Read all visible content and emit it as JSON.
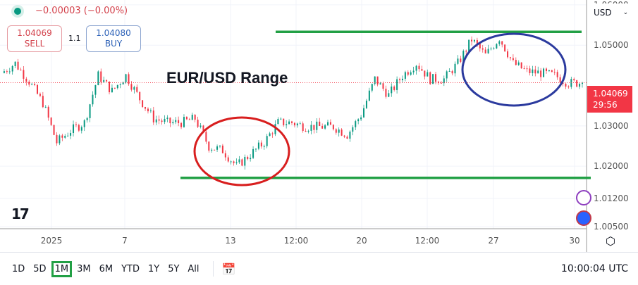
{
  "header": {
    "change": "−0.00003 (−0.00%)",
    "status_color": "#089981"
  },
  "trade": {
    "sell_price": "1.04069",
    "sell_label": "SELL",
    "spread": "1.1",
    "buy_price": "1.04080",
    "buy_label": "BUY"
  },
  "currency": "USD",
  "annotation_title": "EUR/USD Range",
  "price_tag": {
    "price": "1.04069",
    "countdown": "29:56"
  },
  "bottom": {
    "ranges": [
      "1D",
      "5D",
      "1M",
      "3M",
      "6M",
      "YTD",
      "1Y",
      "5Y",
      "All"
    ],
    "selected": "1M",
    "clock": "10:00:04 UTC"
  },
  "chart_data": {
    "type": "candlestick",
    "ylim": [
      1.0045,
      1.0612
    ],
    "yticks": [
      "1.06000",
      "1.05000",
      "1.03000",
      "1.02000",
      "1.01200",
      "1.00500"
    ],
    "ytick_values": [
      1.06,
      1.05,
      1.03,
      1.02,
      1.012,
      1.005
    ],
    "xticks": [
      "2025",
      "7",
      "13",
      "12:00",
      "20",
      "12:00",
      "27",
      "30"
    ],
    "current_price": 1.04069,
    "approx_path": [
      1.0431,
      1.0455,
      1.041,
      1.0357,
      1.0259,
      1.0288,
      1.0308,
      1.0425,
      1.0386,
      1.0425,
      1.0367,
      1.0318,
      1.0308,
      1.0308,
      1.0318,
      1.0249,
      1.0239,
      1.02,
      1.0229,
      1.0259,
      1.0308,
      1.0308,
      1.0298,
      1.0298,
      1.0298,
      1.0278,
      1.0327,
      1.0416,
      1.0376,
      1.0425,
      1.0455,
      1.0416,
      1.0416,
      1.0455,
      1.0514,
      1.0475,
      1.0518,
      1.0455,
      1.0435,
      1.0431,
      1.0425,
      1.0406,
      1.04069
    ],
    "range_lines": [
      1.0533,
      1.0171
    ],
    "up_color": "#089981",
    "down_color": "#f23645",
    "range_line_color": "#22a045",
    "circles": [
      {
        "color": "#d81e1e",
        "around": "range low"
      },
      {
        "color": "#2b3a9e",
        "around": "range high"
      }
    ]
  }
}
